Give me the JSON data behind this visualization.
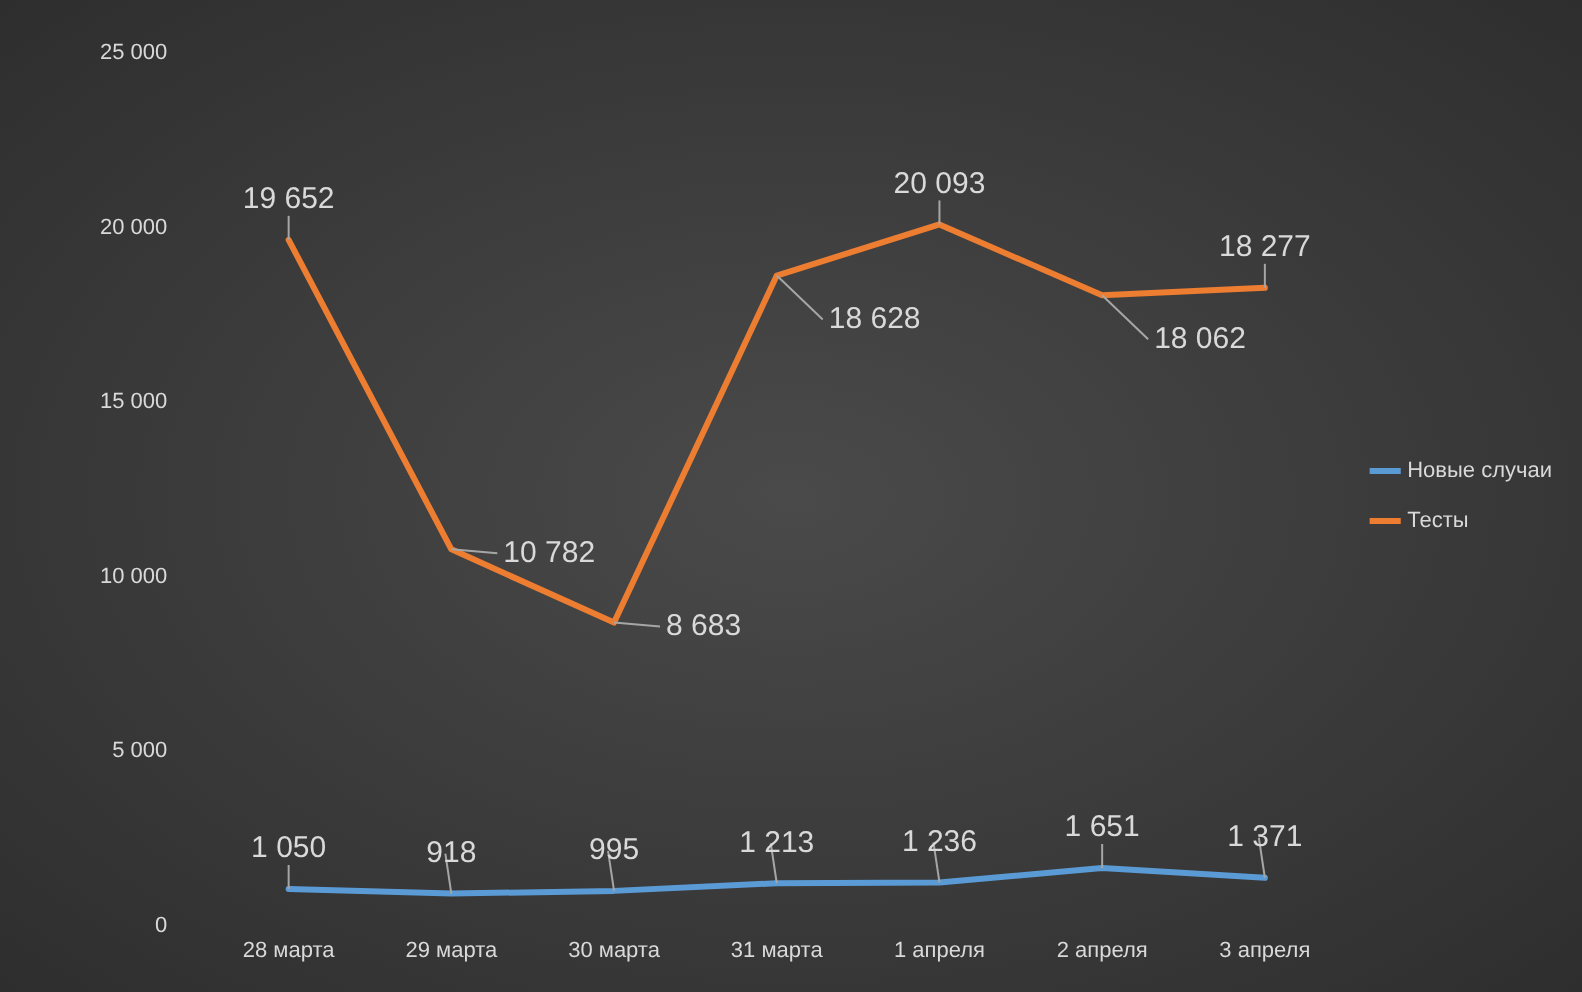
{
  "chart_data": {
    "type": "line",
    "categories": [
      "28 марта",
      "29 марта",
      "30 марта",
      "31 марта",
      "1 апреля",
      "2 апреля",
      "3 апреля"
    ],
    "series": [
      {
        "name": "Новые случаи",
        "color": "#5b9bd5",
        "values": [
          1050,
          918,
          995,
          1213,
          1236,
          1651,
          1371
        ],
        "value_labels": [
          "1 050",
          "918",
          "995",
          "1 213",
          "1 236",
          "1 651",
          "1 371"
        ]
      },
      {
        "name": "Тесты",
        "color": "#ed7d31",
        "values": [
          19652,
          10782,
          8683,
          18628,
          20093,
          18062,
          18277
        ],
        "value_labels": [
          "19 652",
          "10 782",
          "8 683",
          "18 628",
          "20 093",
          "18 062",
          "18 277"
        ]
      }
    ],
    "ylim": [
      0,
      25000
    ],
    "yticks": [
      {
        "value": 0,
        "label": "0"
      },
      {
        "value": 5000,
        "label": "5 000"
      },
      {
        "value": 10000,
        "label": "10 000"
      },
      {
        "value": 15000,
        "label": "15 000"
      },
      {
        "value": 20000,
        "label": "20 000"
      },
      {
        "value": 25000,
        "label": "25 000"
      }
    ],
    "grid": false,
    "legend": "right",
    "marker": "none",
    "line_style": "solid"
  }
}
